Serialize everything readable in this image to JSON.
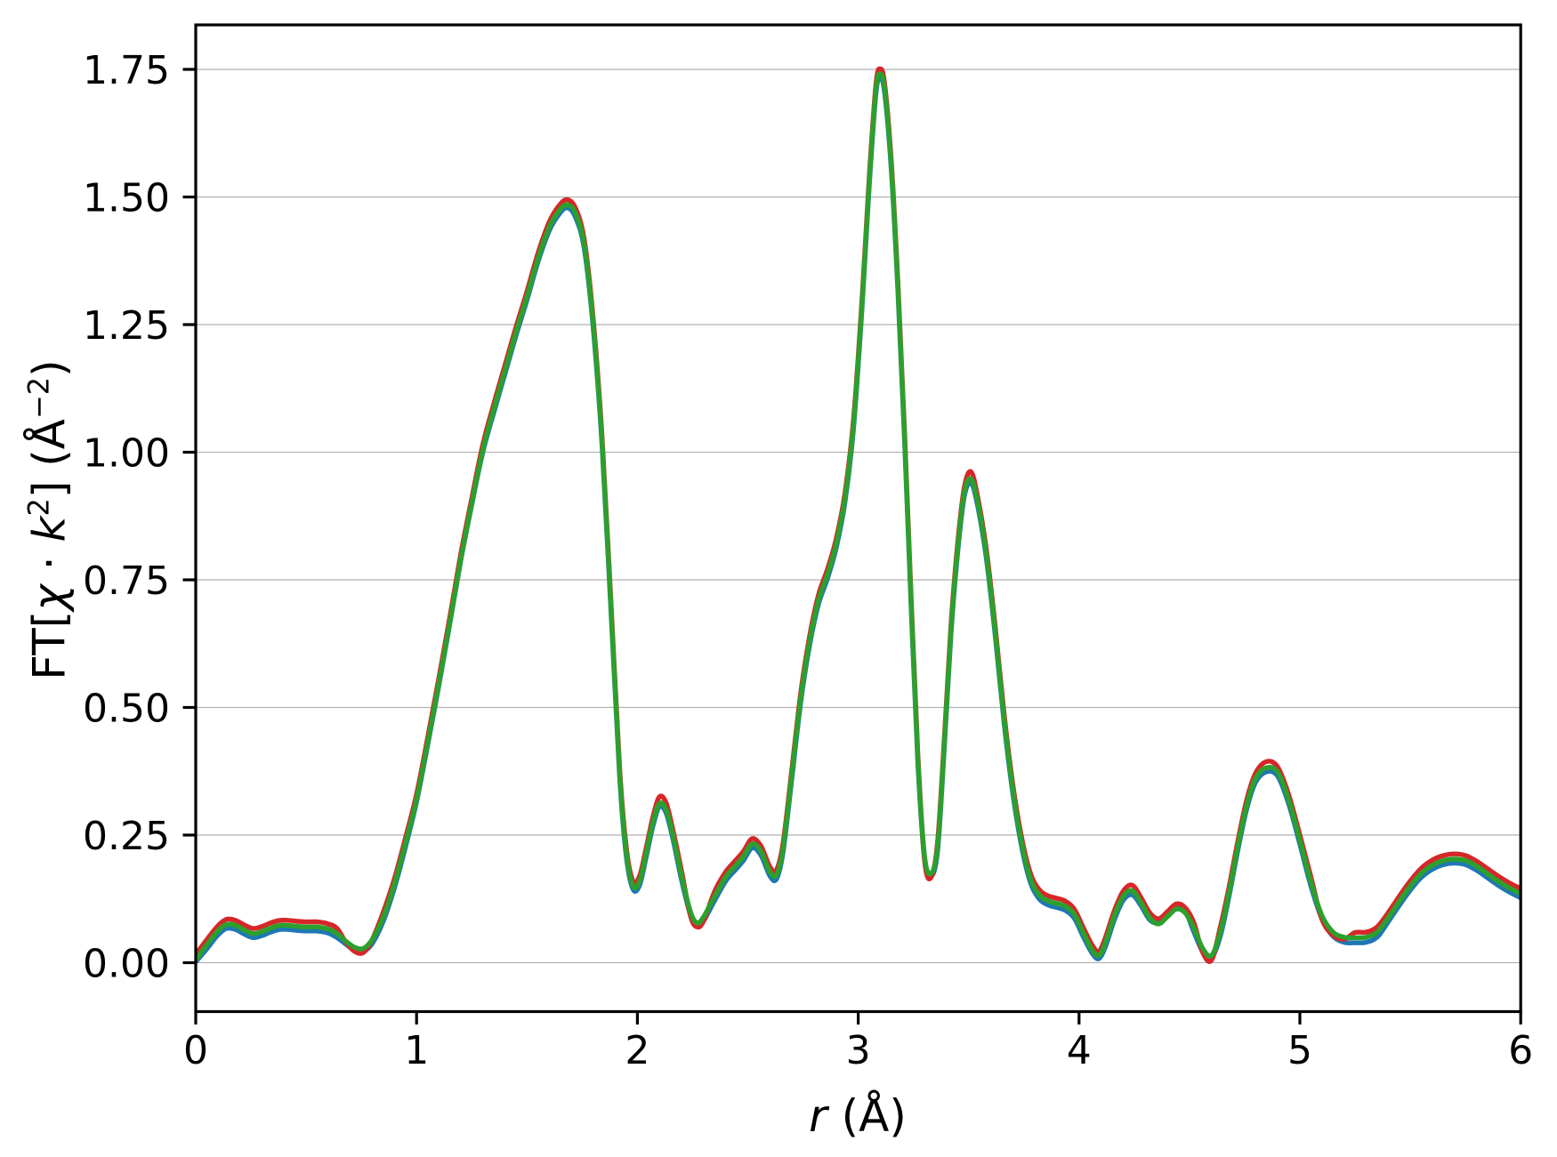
{
  "figure": {
    "background": "#ffffff"
  },
  "axes": {
    "xlabel": {
      "var": "r",
      "rest": " (Å)"
    },
    "ylabel": {
      "parts": [
        {
          "text": "FT["
        },
        {
          "text": "χ"
        },
        {
          "text": " · "
        },
        {
          "text": "k"
        },
        {
          "text": "2"
        },
        {
          "text": "] (Å"
        },
        {
          "text": "−2"
        },
        {
          "text": ")"
        }
      ]
    },
    "xticks": {
      "values": [
        0,
        1,
        2,
        3,
        4,
        5,
        6
      ],
      "labels": [
        "0",
        "1",
        "2",
        "3",
        "4",
        "5",
        "6"
      ]
    },
    "yticks": {
      "values": [
        0,
        0.25,
        0.5,
        0.75,
        1.0,
        1.25,
        1.5,
        1.75
      ],
      "labels": [
        "0.00",
        "0.25",
        "0.50",
        "0.75",
        "1.00",
        "1.25",
        "1.50",
        "1.75"
      ]
    },
    "grid": "horizontal-only",
    "grid_color": "#b2b2b2",
    "spine_color": "#000000",
    "tick_label_color": "#000000"
  },
  "chart_data": {
    "type": "line",
    "title": "",
    "xlabel": "r (Å)",
    "ylabel": "FT[χ·k²] (Å⁻²)",
    "xlim": [
      0,
      6
    ],
    "ylim": [
      -0.097,
      1.837
    ],
    "grid": "horizontal y gridlines at 0.25 intervals",
    "legend_position": "none",
    "x": [
      0.0,
      0.05,
      0.1,
      0.14,
      0.18,
      0.22,
      0.26,
      0.3,
      0.34,
      0.38,
      0.42,
      0.46,
      0.5,
      0.55,
      0.6,
      0.64,
      0.68,
      0.72,
      0.76,
      0.8,
      0.85,
      0.9,
      0.95,
      1.0,
      1.05,
      1.1,
      1.15,
      1.2,
      1.25,
      1.3,
      1.35,
      1.4,
      1.45,
      1.5,
      1.55,
      1.6,
      1.64,
      1.68,
      1.72,
      1.76,
      1.8,
      1.84,
      1.88,
      1.92,
      1.95,
      1.98,
      2.01,
      2.04,
      2.07,
      2.1,
      2.13,
      2.16,
      2.2,
      2.24,
      2.27,
      2.3,
      2.35,
      2.4,
      2.44,
      2.48,
      2.52,
      2.56,
      2.6,
      2.63,
      2.66,
      2.7,
      2.74,
      2.78,
      2.82,
      2.86,
      2.9,
      2.94,
      2.98,
      3.02,
      3.05,
      3.08,
      3.1,
      3.12,
      3.15,
      3.18,
      3.21,
      3.24,
      3.27,
      3.3,
      3.33,
      3.36,
      3.39,
      3.42,
      3.45,
      3.48,
      3.51,
      3.54,
      3.58,
      3.62,
      3.66,
      3.7,
      3.74,
      3.78,
      3.82,
      3.86,
      3.9,
      3.94,
      3.98,
      4.02,
      4.06,
      4.09,
      4.12,
      4.16,
      4.2,
      4.24,
      4.28,
      4.32,
      4.36,
      4.4,
      4.44,
      4.48,
      4.52,
      4.56,
      4.6,
      4.64,
      4.68,
      4.72,
      4.76,
      4.8,
      4.85,
      4.9,
      4.95,
      5.0,
      5.05,
      5.1,
      5.15,
      5.2,
      5.25,
      5.3,
      5.35,
      5.4,
      5.45,
      5.5,
      5.55,
      5.6,
      5.65,
      5.7,
      5.75,
      5.8,
      5.85,
      5.9,
      5.95,
      6.0
    ],
    "series": [
      {
        "name": "series-blue",
        "color": "#1f77b4",
        "values": [
          0.002,
          0.027,
          0.054,
          0.067,
          0.065,
          0.056,
          0.049,
          0.053,
          0.06,
          0.065,
          0.065,
          0.063,
          0.062,
          0.062,
          0.058,
          0.049,
          0.036,
          0.024,
          0.022,
          0.038,
          0.082,
          0.147,
          0.227,
          0.315,
          0.425,
          0.54,
          0.662,
          0.787,
          0.897,
          1.0,
          1.078,
          1.153,
          1.228,
          1.298,
          1.373,
          1.433,
          1.463,
          1.479,
          1.46,
          1.397,
          1.242,
          1.012,
          0.692,
          0.362,
          0.207,
          0.144,
          0.152,
          0.207,
          0.267,
          0.306,
          0.293,
          0.244,
          0.162,
          0.094,
          0.072,
          0.082,
          0.122,
          0.16,
          0.18,
          0.2,
          0.225,
          0.21,
          0.17,
          0.164,
          0.217,
          0.362,
          0.512,
          0.622,
          0.702,
          0.752,
          0.812,
          0.902,
          1.052,
          1.302,
          1.522,
          1.702,
          1.733,
          1.702,
          1.552,
          1.312,
          1.022,
          0.692,
          0.392,
          0.204,
          0.169,
          0.222,
          0.422,
          0.642,
          0.802,
          0.912,
          0.94,
          0.897,
          0.792,
          0.642,
          0.472,
          0.332,
          0.227,
          0.157,
          0.125,
          0.113,
          0.108,
          0.102,
          0.086,
          0.05,
          0.018,
          0.008,
          0.032,
          0.084,
          0.122,
          0.133,
          0.112,
          0.084,
          0.078,
          0.094,
          0.11,
          0.102,
          0.06,
          0.022,
          0.01,
          0.052,
          0.132,
          0.222,
          0.302,
          0.354,
          0.374,
          0.365,
          0.31,
          0.232,
          0.15,
          0.086,
          0.052,
          0.04,
          0.039,
          0.04,
          0.05,
          0.08,
          0.112,
          0.142,
          0.167,
          0.183,
          0.192,
          0.195,
          0.192,
          0.181,
          0.166,
          0.151,
          0.138,
          0.127
        ]
      },
      {
        "name": "series-red",
        "color": "#d62728",
        "values": [
          0.016,
          0.045,
          0.072,
          0.085,
          0.083,
          0.074,
          0.067,
          0.071,
          0.078,
          0.083,
          0.083,
          0.081,
          0.08,
          0.08,
          0.076,
          0.067,
          0.04,
          0.022,
          0.02,
          0.046,
          0.1,
          0.165,
          0.245,
          0.33,
          0.44,
          0.555,
          0.675,
          0.8,
          0.91,
          1.015,
          1.095,
          1.17,
          1.245,
          1.315,
          1.39,
          1.45,
          1.48,
          1.495,
          1.478,
          1.415,
          1.26,
          1.03,
          0.71,
          0.38,
          0.225,
          0.16,
          0.17,
          0.225,
          0.285,
          0.325,
          0.313,
          0.262,
          0.18,
          0.092,
          0.07,
          0.082,
          0.14,
          0.178,
          0.198,
          0.218,
          0.243,
          0.228,
          0.188,
          0.182,
          0.235,
          0.38,
          0.53,
          0.64,
          0.72,
          0.77,
          0.83,
          0.92,
          1.07,
          1.32,
          1.54,
          1.72,
          1.751,
          1.72,
          1.57,
          1.33,
          1.04,
          0.71,
          0.41,
          0.202,
          0.167,
          0.24,
          0.44,
          0.66,
          0.82,
          0.93,
          0.962,
          0.915,
          0.81,
          0.66,
          0.49,
          0.35,
          0.245,
          0.175,
          0.143,
          0.131,
          0.126,
          0.12,
          0.104,
          0.068,
          0.034,
          0.022,
          0.05,
          0.102,
          0.14,
          0.152,
          0.128,
          0.098,
          0.086,
          0.1,
          0.115,
          0.108,
          0.078,
          0.02,
          0.005,
          0.07,
          0.15,
          0.24,
          0.32,
          0.372,
          0.394,
          0.383,
          0.328,
          0.25,
          0.168,
          0.085,
          0.054,
          0.046,
          0.059,
          0.06,
          0.07,
          0.098,
          0.13,
          0.16,
          0.185,
          0.201,
          0.21,
          0.213,
          0.21,
          0.199,
          0.184,
          0.169,
          0.156,
          0.145
        ]
      },
      {
        "name": "series-green",
        "color": "#2ca02c",
        "values": [
          0.006,
          0.035,
          0.062,
          0.075,
          0.073,
          0.064,
          0.057,
          0.061,
          0.068,
          0.073,
          0.073,
          0.071,
          0.07,
          0.07,
          0.066,
          0.057,
          0.042,
          0.03,
          0.028,
          0.046,
          0.09,
          0.155,
          0.235,
          0.32,
          0.43,
          0.545,
          0.665,
          0.79,
          0.9,
          1.005,
          1.085,
          1.16,
          1.235,
          1.305,
          1.38,
          1.44,
          1.47,
          1.485,
          1.468,
          1.405,
          1.25,
          1.02,
          0.7,
          0.37,
          0.215,
          0.15,
          0.16,
          0.215,
          0.275,
          0.312,
          0.3,
          0.252,
          0.17,
          0.1,
          0.078,
          0.09,
          0.13,
          0.168,
          0.188,
          0.208,
          0.233,
          0.218,
          0.178,
          0.172,
          0.225,
          0.37,
          0.52,
          0.63,
          0.71,
          0.76,
          0.82,
          0.91,
          1.06,
          1.31,
          1.53,
          1.71,
          1.741,
          1.71,
          1.56,
          1.32,
          1.03,
          0.7,
          0.4,
          0.21,
          0.175,
          0.23,
          0.43,
          0.65,
          0.81,
          0.92,
          0.948,
          0.905,
          0.8,
          0.65,
          0.48,
          0.34,
          0.235,
          0.165,
          0.133,
          0.121,
          0.116,
          0.11,
          0.094,
          0.058,
          0.024,
          0.014,
          0.04,
          0.092,
          0.13,
          0.141,
          0.118,
          0.088,
          0.076,
          0.09,
          0.105,
          0.098,
          0.068,
          0.028,
          0.014,
          0.06,
          0.14,
          0.23,
          0.31,
          0.362,
          0.382,
          0.373,
          0.318,
          0.24,
          0.158,
          0.092,
          0.06,
          0.05,
          0.049,
          0.05,
          0.06,
          0.088,
          0.12,
          0.15,
          0.175,
          0.191,
          0.2,
          0.203,
          0.2,
          0.189,
          0.174,
          0.159,
          0.146,
          0.135
        ]
      }
    ]
  }
}
